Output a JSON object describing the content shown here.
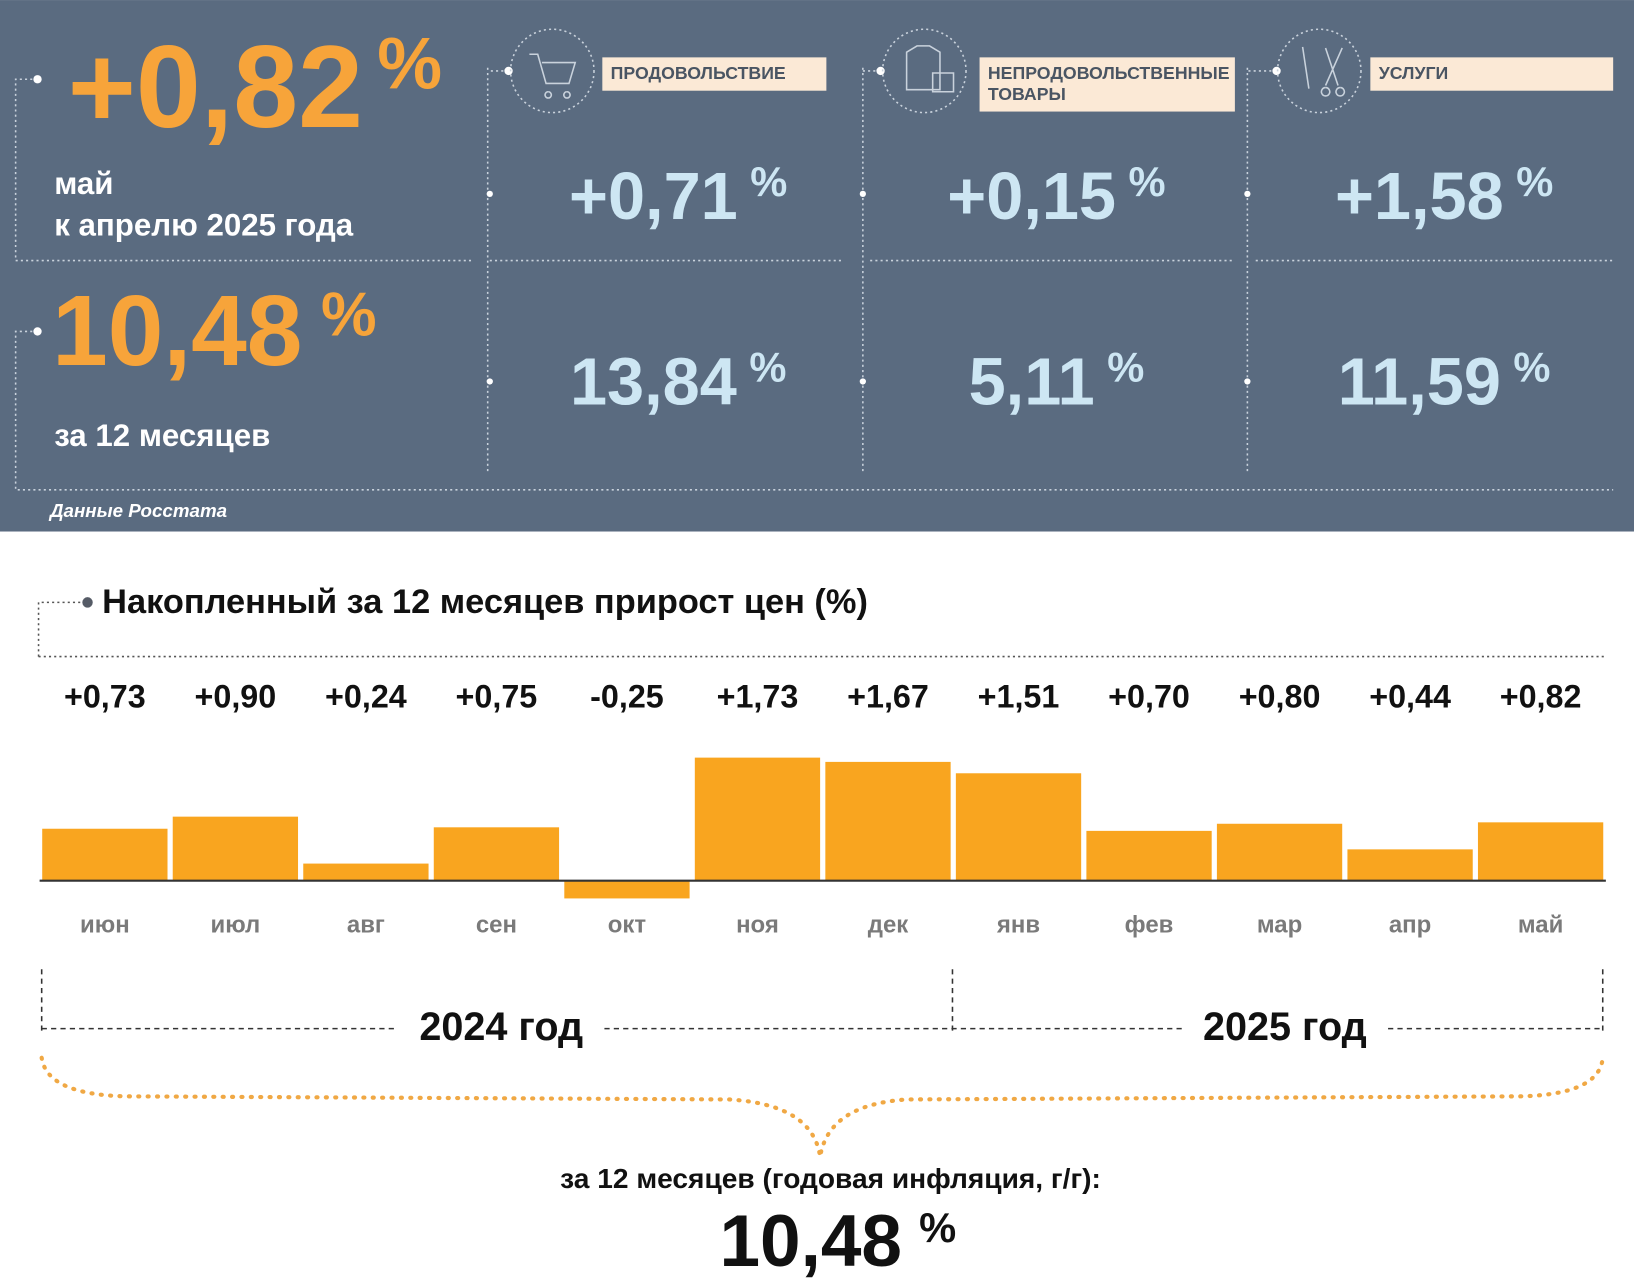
{
  "summary": {
    "monthly": {
      "value": "+0,82",
      "unit": "%",
      "label_lines": [
        "май",
        "к апрелю 2025 года"
      ]
    },
    "annual": {
      "value": "10,48",
      "unit": "%",
      "label": "за 12 месяцев"
    },
    "source": "Данные Росстата"
  },
  "groups": [
    {
      "title_lines": [
        "ПРОДОВОЛЬСТВИЕ"
      ],
      "monthly": {
        "value": "+0,71",
        "unit": "%"
      },
      "annual": {
        "value": "13,84",
        "unit": "%"
      }
    },
    {
      "title_lines": [
        "НЕПРОДОВОЛЬСТВЕННЫЕ",
        "ТОВАРЫ"
      ],
      "monthly": {
        "value": "+0,15",
        "unit": "%"
      },
      "annual": {
        "value": "5,11",
        "unit": "%"
      }
    },
    {
      "title_lines": [
        "УСЛУГИ"
      ],
      "monthly": {
        "value": "+1,58",
        "unit": "%"
      },
      "annual": {
        "value": "11,59",
        "unit": "%"
      }
    }
  ],
  "chart_data": {
    "type": "bar",
    "title": "Накопленный за 12 месяцев прирост цен (%)",
    "categories": [
      "июн",
      "июл",
      "авг",
      "сен",
      "окт",
      "ноя",
      "дек",
      "янв",
      "фев",
      "мар",
      "апр",
      "май"
    ],
    "values": [
      0.73,
      0.9,
      0.24,
      0.75,
      -0.25,
      1.73,
      1.67,
      1.51,
      0.7,
      0.8,
      0.44,
      0.82
    ],
    "value_labels": [
      "+0,73",
      "+0,90",
      "+0,24",
      "+0,75",
      "-0,25",
      "+1,73",
      "+1,67",
      "+1,51",
      "+0,70",
      "+0,80",
      "+0,44",
      "+0,82"
    ],
    "color": "#f9a51f",
    "ylim": [
      -0.3,
      1.8
    ],
    "year_labels": [
      "2024 год",
      "2025 год"
    ],
    "total_caption": "за 12 месяцев (годовая инфляция, г/г):",
    "total": {
      "value": "10,48",
      "unit": "%"
    }
  }
}
